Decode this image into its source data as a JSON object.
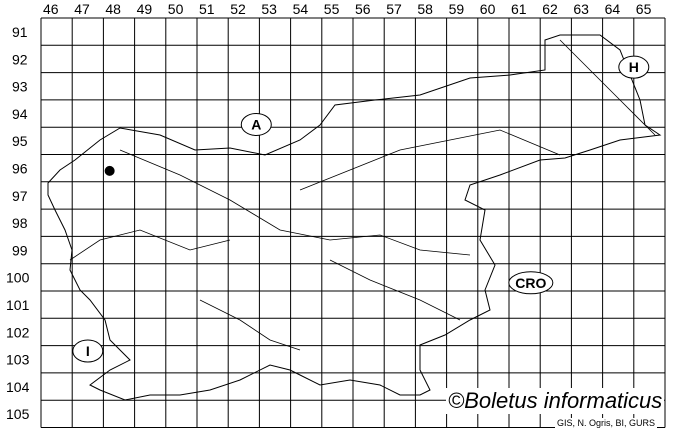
{
  "map": {
    "columns": [
      "46",
      "47",
      "48",
      "49",
      "50",
      "51",
      "52",
      "53",
      "54",
      "55",
      "56",
      "57",
      "58",
      "59",
      "60",
      "61",
      "62",
      "63",
      "64",
      "65"
    ],
    "rows": [
      "91",
      "92",
      "93",
      "94",
      "95",
      "96",
      "97",
      "98",
      "99",
      "100",
      "101",
      "102",
      "103",
      "104",
      "105"
    ],
    "country_labels": [
      {
        "text": "A",
        "col": 52.4,
        "row": 94.4
      },
      {
        "text": "H",
        "col": 64.5,
        "row": 92.3
      },
      {
        "text": "CRO",
        "col": 61.2,
        "row": 100.2
      },
      {
        "text": "I",
        "col": 47.0,
        "row": 102.7
      }
    ],
    "occurrences": [
      {
        "col": 47.7,
        "row": 96.1
      }
    ],
    "copyright": "©Boletus informaticus",
    "credit": "GIS, N. Ogris, BI, GURS"
  }
}
